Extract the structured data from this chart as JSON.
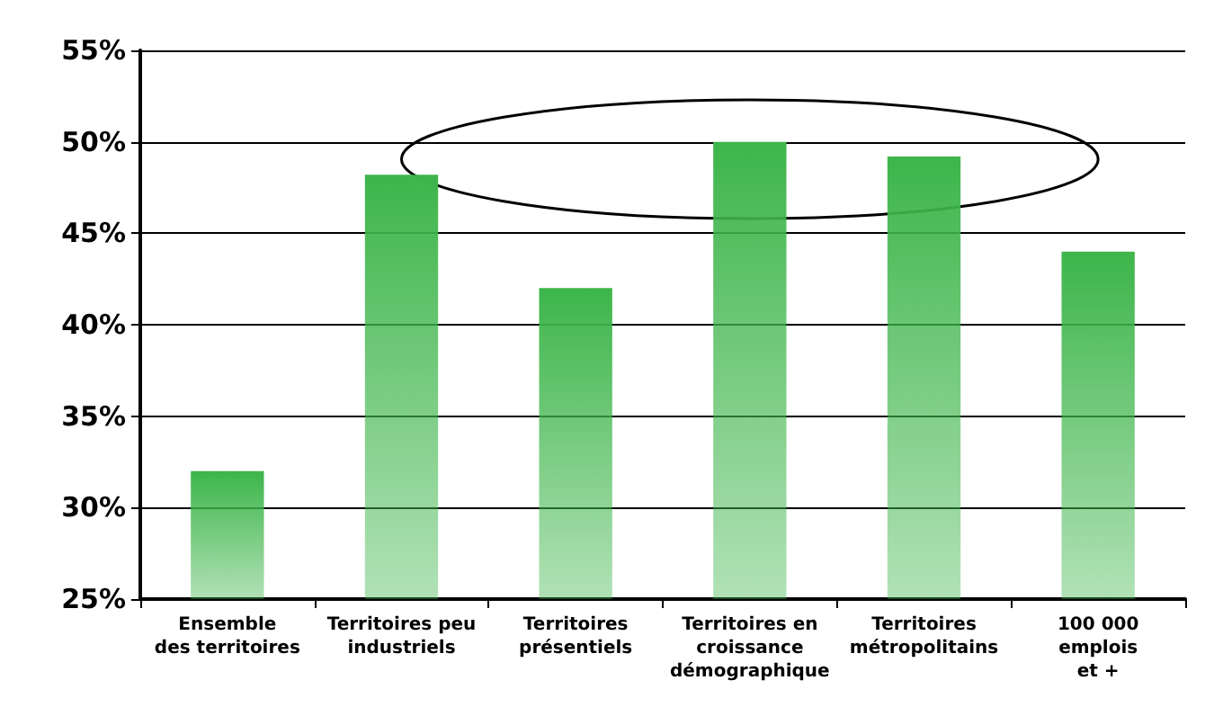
{
  "chart_data": {
    "type": "bar",
    "categories": [
      "Ensemble\ndes territoires",
      "Territoires peu\nindustriels",
      "Territoires\nprésentiels",
      "Territoires en\ncroissance\ndémographique",
      "Territoires\nmétropolitains",
      "100 000\nemplois\net +"
    ],
    "values": [
      32,
      48.2,
      42,
      50,
      49.2,
      44
    ],
    "color": "#3db54a",
    "ylim": [
      25,
      55
    ],
    "yticks": [
      {
        "value": 25,
        "label": "25%"
      },
      {
        "value": 30,
        "label": "30%"
      },
      {
        "value": 35,
        "label": "35%"
      },
      {
        "value": 40,
        "label": "40%"
      },
      {
        "value": 45,
        "label": "45%"
      },
      {
        "value": 50,
        "label": "50%"
      },
      {
        "value": 55,
        "label": "55%"
      }
    ],
    "grid": "y"
  }
}
